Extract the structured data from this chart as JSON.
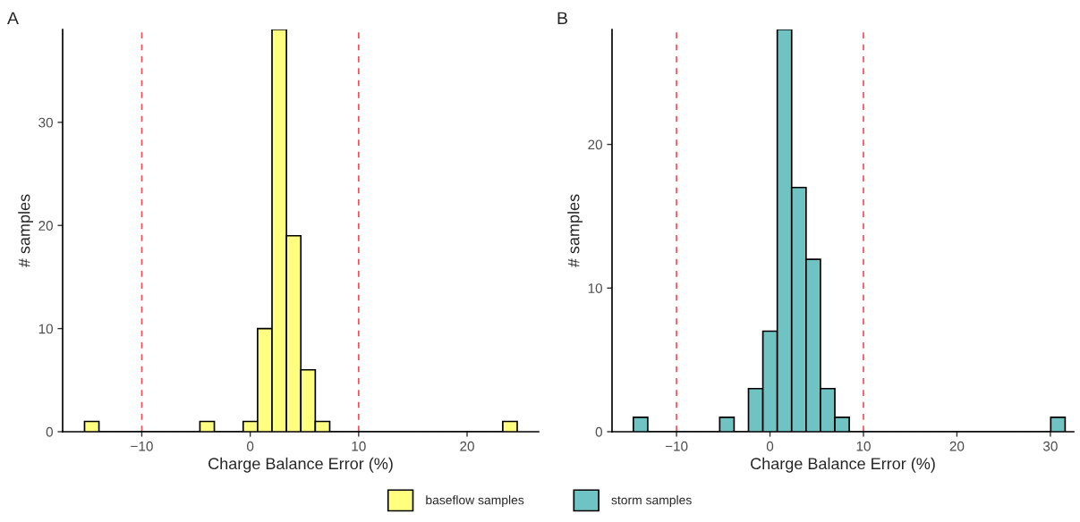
{
  "chart_data": [
    {
      "type": "histogram",
      "title": "A",
      "xlabel": "Charge Balance Error (%)",
      "ylabel": "# samples",
      "bins": [
        -15.28,
        -13.95,
        -12.62,
        -11.29,
        -9.96,
        -8.63,
        -7.3,
        -5.97,
        -4.64,
        -3.31,
        -1.98,
        -0.65,
        0.68,
        2.01,
        3.34,
        4.67,
        6.0,
        7.33,
        8.66,
        9.99,
        11.32,
        12.65,
        13.98,
        15.31,
        16.64,
        17.97,
        19.3,
        20.63,
        21.96,
        23.29,
        24.62
      ],
      "series": [
        {
          "name": "baseflow samples",
          "color": "#ffff80",
          "values": [
            1,
            0,
            0,
            0,
            0,
            0,
            0,
            0,
            1,
            0,
            0,
            1,
            10,
            39,
            19,
            6,
            1,
            0,
            0,
            0,
            0,
            0,
            0,
            0,
            0,
            0,
            0,
            0,
            0,
            1
          ]
        }
      ],
      "xlim": [
        -17.3,
        26.6
      ],
      "xticks": [
        {
          "value": -10,
          "label": "−10"
        },
        0,
        10,
        20
      ],
      "ylim": [
        0,
        39
      ],
      "yticks": [
        0,
        10,
        20,
        30
      ],
      "ref_lines": [
        {
          "axis": "x",
          "value": -10,
          "color": "#f0505a",
          "line_style": "dashed"
        },
        {
          "axis": "x",
          "value": 10,
          "color": "#f0505a",
          "line_style": "dashed"
        }
      ],
      "legend": "bottom",
      "grid": false
    },
    {
      "type": "histogram",
      "title": "B",
      "xlabel": "Charge Balance Error (%)",
      "ylabel": "# samples",
      "bins": [
        -14.62,
        -13.08,
        -11.54,
        -10.0,
        -8.46,
        -6.92,
        -5.38,
        -3.84,
        -2.3,
        -0.76,
        0.78,
        2.32,
        3.86,
        5.4,
        6.94,
        8.48,
        10.02,
        11.56,
        13.1,
        14.64,
        16.18,
        17.72,
        19.26,
        20.8,
        22.34,
        23.88,
        25.42,
        26.96,
        28.5,
        30.04,
        31.58
      ],
      "series": [
        {
          "name": "storm samples",
          "color": "#6fc3c3",
          "values": [
            1,
            0,
            0,
            0,
            0,
            0,
            1,
            0,
            3,
            7,
            28,
            17,
            12,
            3,
            1,
            0,
            0,
            0,
            0,
            0,
            0,
            0,
            0,
            0,
            0,
            0,
            0,
            0,
            0,
            1
          ]
        }
      ],
      "xlim": [
        -16.9,
        32.5
      ],
      "xticks": [
        {
          "value": -10,
          "label": "−10"
        },
        0,
        10,
        20,
        30
      ],
      "ylim": [
        0,
        28
      ],
      "yticks": [
        0,
        10,
        20
      ],
      "ref_lines": [
        {
          "axis": "x",
          "value": -10,
          "color": "#f0505a",
          "line_style": "dashed"
        },
        {
          "axis": "x",
          "value": 10,
          "color": "#f0505a",
          "line_style": "dashed"
        }
      ],
      "legend": "bottom",
      "grid": false
    }
  ]
}
